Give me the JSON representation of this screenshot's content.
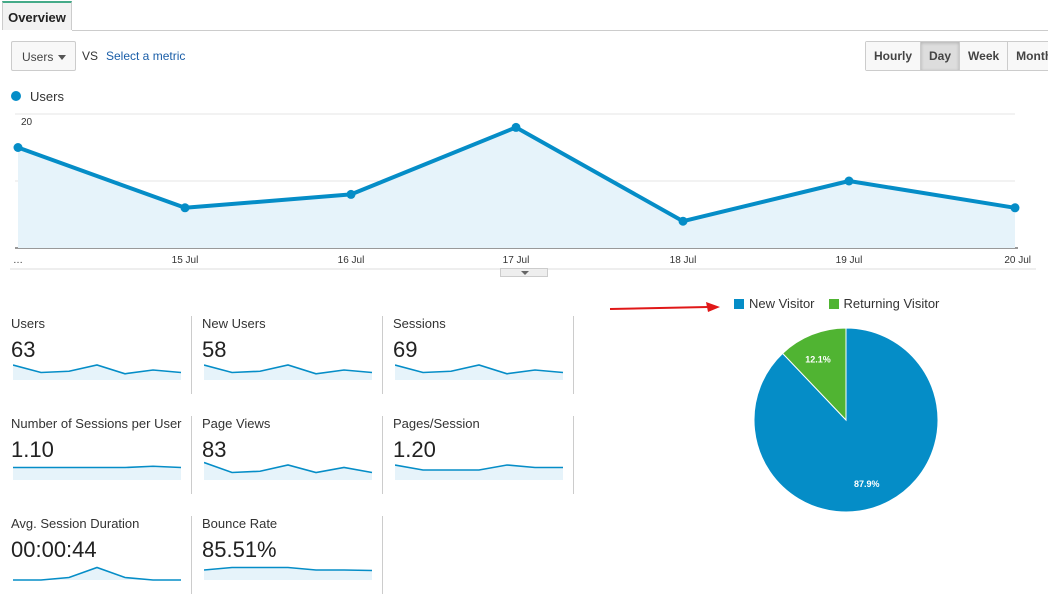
{
  "tab": {
    "label": "Overview"
  },
  "toolbar": {
    "metric_select": "Users",
    "vs": "VS",
    "select_metric": "Select a metric",
    "ranges": [
      "Hourly",
      "Day",
      "Week",
      "Month"
    ],
    "active_range": "Day"
  },
  "legend": {
    "label": "Users",
    "color": "#058dc7"
  },
  "chart_data": [
    {
      "type": "area",
      "series": [
        {
          "name": "Users",
          "values": [
            15,
            6,
            8,
            18,
            4,
            10,
            6
          ]
        }
      ],
      "x": [
        "…",
        "15 Jul",
        "16 Jul",
        "17 Jul",
        "18 Jul",
        "19 Jul",
        "20 Jul"
      ],
      "yticks": [
        "20",
        "10"
      ],
      "ylim": [
        0,
        20
      ],
      "grid": true,
      "color": "#058dc7"
    },
    {
      "type": "pie",
      "categories": [
        "New Visitor",
        "Returning Visitor"
      ],
      "values": [
        87.9,
        12.1
      ],
      "labels": [
        "87.9%",
        "12.1%"
      ],
      "colors": [
        "#058dc7",
        "#50b432"
      ],
      "legend_position": "top"
    }
  ],
  "metrics": [
    {
      "label": "Users",
      "value": "63",
      "spark": [
        6,
        3,
        3.5,
        6,
        2.5,
        4,
        3
      ]
    },
    {
      "label": "New Users",
      "value": "58",
      "spark": [
        6,
        3,
        3.5,
        6,
        2.5,
        4,
        3
      ]
    },
    {
      "label": "Sessions",
      "value": "69",
      "spark": [
        6,
        3,
        3.5,
        6,
        2.5,
        4,
        3
      ]
    },
    {
      "label": "Number of Sessions per User",
      "value": "1.10",
      "spark": [
        5,
        5,
        5,
        5,
        5,
        5.5,
        5
      ]
    },
    {
      "label": "Page Views",
      "value": "83",
      "spark": [
        7,
        3,
        3.5,
        6,
        3,
        5,
        3
      ]
    },
    {
      "label": "Pages/Session",
      "value": "1.20",
      "spark": [
        6,
        4,
        4,
        4,
        6,
        5,
        5
      ]
    },
    {
      "label": "Avg. Session Duration",
      "value": "00:00:44",
      "spark": [
        0,
        0,
        1,
        5,
        1,
        0,
        0
      ]
    },
    {
      "label": "Bounce Rate",
      "value": "85.51%",
      "spark": [
        4,
        5,
        5,
        5,
        4,
        4,
        3.8
      ]
    }
  ]
}
